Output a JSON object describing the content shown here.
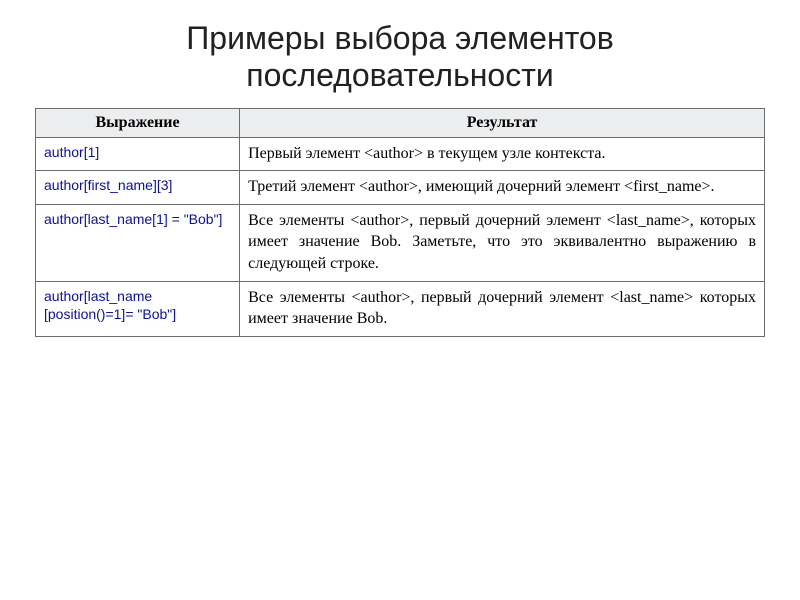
{
  "title": "Примеры выбора элементов последовательности",
  "table": {
    "headers": {
      "expr": "Выражение",
      "result": "Результат"
    },
    "header_bg": "#ebedef",
    "border_color": "#6a6c6e",
    "expr_color": "#0a10a8",
    "text_color": "#000000",
    "font_family_title": "Verdana",
    "font_family_body": "Times New Roman",
    "title_fontsize": 32,
    "header_fontsize": 16,
    "cell_fontsize": 16,
    "expr_fontsize": 14,
    "col_widths_pct": [
      28,
      72
    ],
    "rows": [
      {
        "expr": "author[1]",
        "result": "Первый элемент <author> в текущем узле контекста."
      },
      {
        "expr": "author[first_name][3]",
        "result": "Третий элемент <author>, имеющий дочерний элемент <first_name>."
      },
      {
        "expr": "author[last_name[1] = \"Bob\"]",
        "result": "Все элементы <author>, первый дочерний элемент <last_name>, которых имеет значение Bob. Заметьте, что это эквивалентно выражению в следующей строке."
      },
      {
        "expr": "author[last_name [position()=1]= \"Bob\"]",
        "result": "Все элементы <author>, первый дочерний элемент <last_name> которых имеет значение Bob."
      }
    ]
  }
}
